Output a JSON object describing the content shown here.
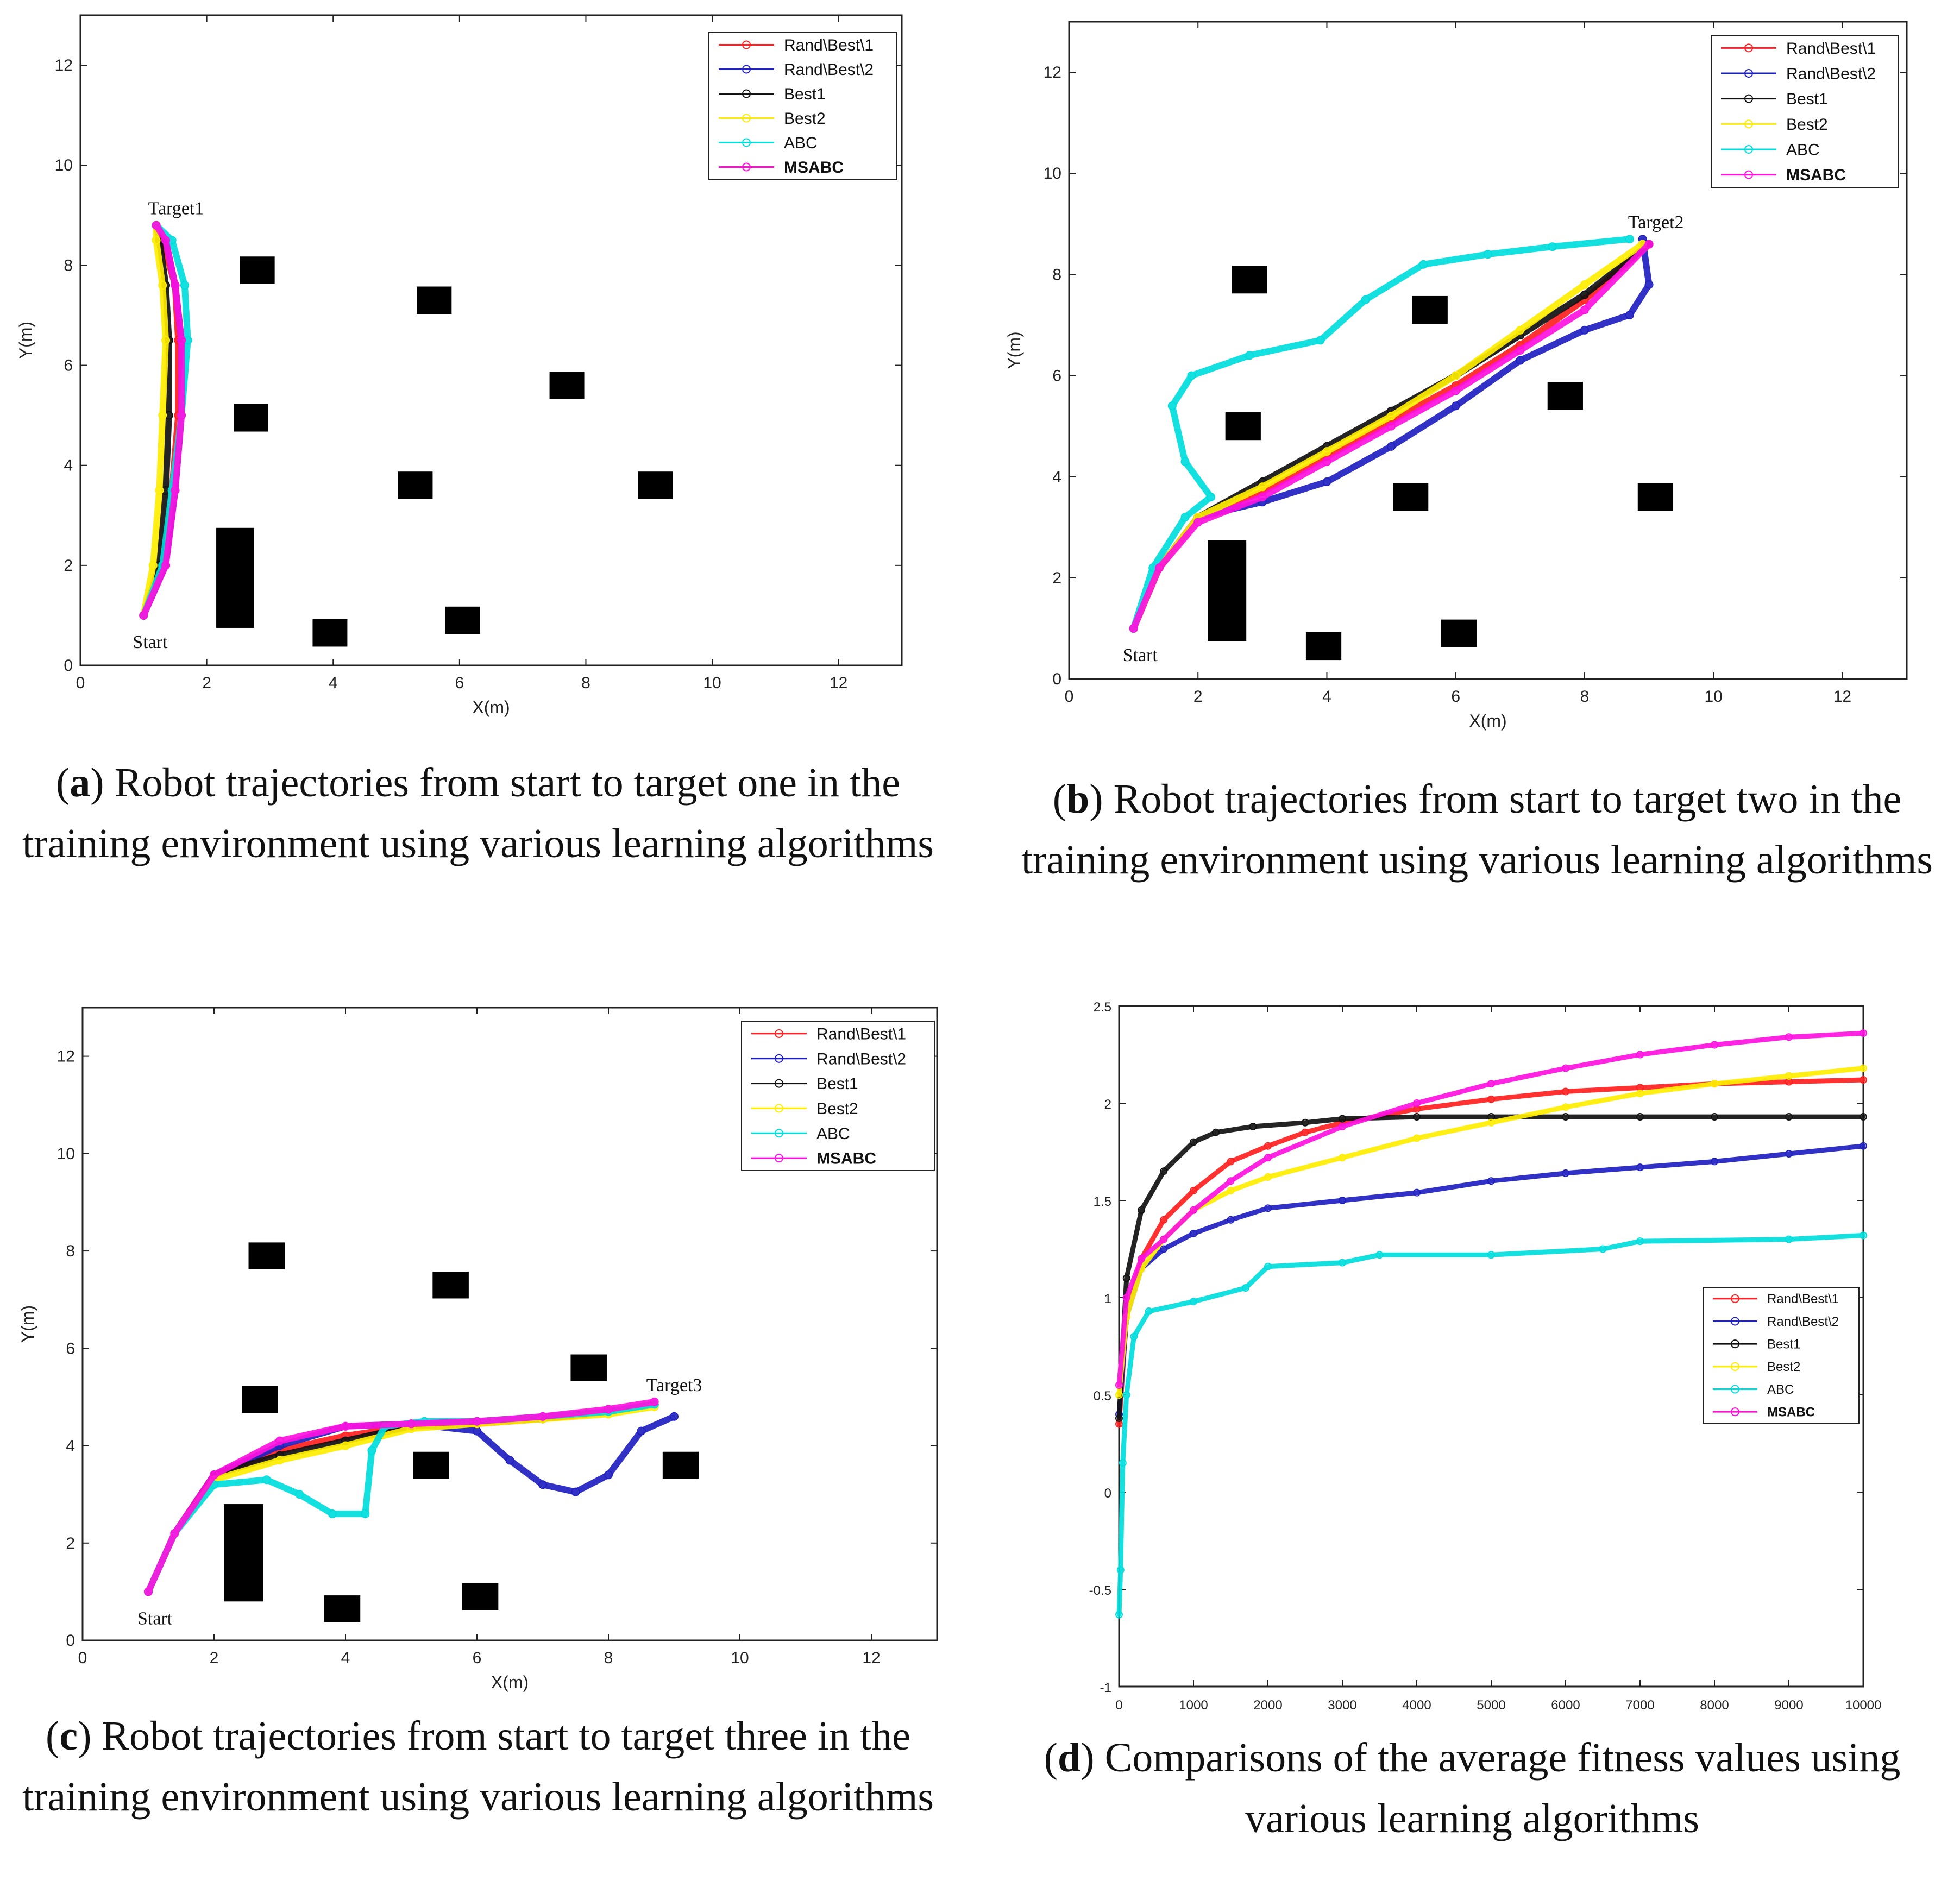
{
  "captions": {
    "a": {
      "letter": "a",
      "text": "Robot trajectories from start to target one in the training environment using various learning algorithms"
    },
    "b": {
      "letter": "b",
      "text": "Robot trajectories from start to target two in the training environment using various learning algorithms"
    },
    "c": {
      "letter": "c",
      "text": "Robot trajectories from start to target three in the training environment using various learning algorithms"
    },
    "d": {
      "letter": "d",
      "text": "Comparisons of the average fitness values using various learning algorithms"
    }
  },
  "colors": {
    "Rand\\Best\\1": "#ff2020",
    "Rand\\Best\\2": "#2020c0",
    "Best1": "#111111",
    "Best2": "#ffee00",
    "ABC": "#00dddd",
    "MSABC": "#ff10e0"
  },
  "chart_data": [
    {
      "panel": "a",
      "type": "line",
      "xlabel": "X(m)",
      "ylabel": "Y(m)",
      "xlim": [
        0,
        13
      ],
      "ylim": [
        0,
        13
      ],
      "xticks": [
        0,
        2,
        4,
        6,
        8,
        10,
        12
      ],
      "yticks": [
        0,
        2,
        4,
        6,
        8,
        10,
        12
      ],
      "legend": [
        "Rand\\Best\\1",
        "Rand\\Best\\2",
        "Best1",
        "Best2",
        "ABC",
        "MSABC"
      ],
      "legend_position": "top-right",
      "annotations": [
        {
          "text": "Start",
          "x": 1.0,
          "y": 1.0
        },
        {
          "text": "Target1",
          "x": 1.2,
          "y": 8.8
        }
      ],
      "obstacles": [
        {
          "x": 2.8,
          "y": 7.9,
          "w": 0.55,
          "h": 0.55
        },
        {
          "x": 5.6,
          "y": 7.3,
          "w": 0.55,
          "h": 0.55
        },
        {
          "x": 7.7,
          "y": 5.6,
          "w": 0.55,
          "h": 0.55
        },
        {
          "x": 2.7,
          "y": 4.95,
          "w": 0.55,
          "h": 0.55
        },
        {
          "x": 5.3,
          "y": 3.6,
          "w": 0.55,
          "h": 0.55
        },
        {
          "x": 9.1,
          "y": 3.6,
          "w": 0.55,
          "h": 0.55
        },
        {
          "x": 2.45,
          "y": 1.75,
          "w": 0.6,
          "h": 2.0
        },
        {
          "x": 3.95,
          "y": 0.65,
          "w": 0.55,
          "h": 0.55
        },
        {
          "x": 6.05,
          "y": 0.9,
          "w": 0.55,
          "h": 0.55
        }
      ],
      "series": [
        {
          "name": "Rand\\Best\\1",
          "x": [
            1.0,
            1.3,
            1.45,
            1.55,
            1.55,
            1.5,
            1.3,
            1.2
          ],
          "y": [
            1.0,
            2.0,
            3.5,
            5.0,
            6.5,
            7.6,
            8.5,
            8.8
          ]
        },
        {
          "name": "Rand\\Best\\2",
          "x": [
            1.0,
            1.35,
            1.5,
            1.6,
            1.6,
            1.5,
            1.35,
            1.2
          ],
          "y": [
            1.0,
            2.0,
            3.5,
            5.0,
            6.5,
            7.6,
            8.5,
            8.8
          ]
        },
        {
          "name": "Best1",
          "x": [
            1.0,
            1.25,
            1.35,
            1.4,
            1.4,
            1.35,
            1.25,
            1.2
          ],
          "y": [
            1.0,
            2.0,
            3.5,
            5.0,
            6.5,
            7.6,
            8.5,
            8.8
          ]
        },
        {
          "name": "Best2",
          "x": [
            1.0,
            1.15,
            1.25,
            1.3,
            1.35,
            1.3,
            1.2,
            1.2
          ],
          "y": [
            1.0,
            2.0,
            3.5,
            5.0,
            6.5,
            7.6,
            8.5,
            8.8
          ]
        },
        {
          "name": "ABC",
          "x": [
            1.0,
            1.3,
            1.45,
            1.6,
            1.7,
            1.65,
            1.45,
            1.2
          ],
          "y": [
            1.0,
            2.0,
            3.5,
            5.0,
            6.5,
            7.6,
            8.5,
            8.8
          ]
        },
        {
          "name": "MSABC",
          "x": [
            1.0,
            1.35,
            1.5,
            1.6,
            1.6,
            1.5,
            1.35,
            1.2
          ],
          "y": [
            1.0,
            2.0,
            3.5,
            5.0,
            6.5,
            7.6,
            8.5,
            8.8
          ]
        }
      ]
    },
    {
      "panel": "b",
      "type": "line",
      "xlabel": "X(m)",
      "ylabel": "Y(m)",
      "xlim": [
        0,
        13
      ],
      "ylim": [
        0,
        13
      ],
      "xticks": [
        0,
        2,
        4,
        6,
        8,
        10,
        12
      ],
      "yticks": [
        0,
        2,
        4,
        6,
        8,
        10,
        12
      ],
      "legend": [
        "Rand\\Best\\1",
        "Rand\\Best\\2",
        "Best1",
        "Best2",
        "ABC",
        "MSABC"
      ],
      "legend_position": "top-right",
      "annotations": [
        {
          "text": "Start",
          "x": 1.0,
          "y": 1.0
        },
        {
          "text": "Target2",
          "x": 8.8,
          "y": 8.7
        }
      ],
      "obstacles": [
        {
          "x": 2.8,
          "y": 7.9,
          "w": 0.55,
          "h": 0.55
        },
        {
          "x": 5.6,
          "y": 7.3,
          "w": 0.55,
          "h": 0.55
        },
        {
          "x": 7.7,
          "y": 5.6,
          "w": 0.55,
          "h": 0.55
        },
        {
          "x": 2.7,
          "y": 5.0,
          "w": 0.55,
          "h": 0.55
        },
        {
          "x": 5.3,
          "y": 3.6,
          "w": 0.55,
          "h": 0.55
        },
        {
          "x": 9.1,
          "y": 3.6,
          "w": 0.55,
          "h": 0.55
        },
        {
          "x": 2.45,
          "y": 1.75,
          "w": 0.6,
          "h": 2.0
        },
        {
          "x": 3.95,
          "y": 0.65,
          "w": 0.55,
          "h": 0.55
        },
        {
          "x": 6.05,
          "y": 0.9,
          "w": 0.55,
          "h": 0.55
        }
      ],
      "series": [
        {
          "name": "Rand\\Best\\1",
          "x": [
            1.0,
            1.4,
            2.0,
            3.0,
            4.0,
            5.0,
            6.0,
            7.0,
            8.0,
            9.0
          ],
          "y": [
            1.0,
            2.2,
            3.2,
            3.7,
            4.4,
            5.1,
            5.8,
            6.6,
            7.5,
            8.6
          ]
        },
        {
          "name": "Rand\\Best\\2",
          "x": [
            1.0,
            1.4,
            2.0,
            3.0,
            4.0,
            5.0,
            6.0,
            7.0,
            8.0,
            8.7,
            9.0,
            8.9
          ],
          "y": [
            1.0,
            2.2,
            3.2,
            3.5,
            3.9,
            4.6,
            5.4,
            6.3,
            6.9,
            7.2,
            7.8,
            8.7
          ]
        },
        {
          "name": "Best1",
          "x": [
            1.0,
            1.4,
            2.0,
            3.0,
            4.0,
            5.0,
            6.0,
            7.0,
            8.0,
            9.0
          ],
          "y": [
            1.0,
            2.2,
            3.2,
            3.9,
            4.6,
            5.3,
            6.0,
            6.8,
            7.6,
            8.6
          ]
        },
        {
          "name": "Best2",
          "x": [
            1.0,
            1.4,
            2.0,
            3.0,
            4.0,
            5.0,
            6.0,
            7.0,
            8.0,
            8.9
          ],
          "y": [
            1.0,
            2.2,
            3.2,
            3.8,
            4.5,
            5.2,
            6.0,
            6.9,
            7.8,
            8.6
          ]
        },
        {
          "name": "ABC",
          "x": [
            1.0,
            1.3,
            1.8,
            2.2,
            1.8,
            1.6,
            1.9,
            2.8,
            3.9,
            4.6,
            5.5,
            6.5,
            7.5,
            8.7
          ],
          "y": [
            1.0,
            2.2,
            3.2,
            3.6,
            4.3,
            5.4,
            6.0,
            6.4,
            6.7,
            7.5,
            8.2,
            8.4,
            8.55,
            8.7
          ]
        },
        {
          "name": "MSABC",
          "x": [
            1.0,
            1.4,
            2.0,
            3.0,
            4.0,
            5.0,
            6.0,
            7.0,
            8.0,
            9.0
          ],
          "y": [
            1.0,
            2.2,
            3.1,
            3.6,
            4.3,
            5.0,
            5.7,
            6.5,
            7.3,
            8.6
          ]
        }
      ]
    },
    {
      "panel": "c",
      "type": "line",
      "xlabel": "X(m)",
      "ylabel": "Y(m)",
      "xlim": [
        0,
        13
      ],
      "ylim": [
        0,
        13
      ],
      "xticks": [
        0,
        2,
        4,
        6,
        8,
        10,
        12
      ],
      "yticks": [
        0,
        2,
        4,
        6,
        8,
        10,
        12
      ],
      "legend": [
        "Rand\\Best\\1",
        "Rand\\Best\\2",
        "Best1",
        "Best2",
        "ABC",
        "MSABC"
      ],
      "legend_position": "top-right",
      "annotations": [
        {
          "text": "Start",
          "x": 1.0,
          "y": 1.0
        },
        {
          "text": "Target3",
          "x": 8.7,
          "y": 4.9
        }
      ],
      "obstacles": [
        {
          "x": 2.8,
          "y": 7.9,
          "w": 0.55,
          "h": 0.55
        },
        {
          "x": 5.6,
          "y": 7.3,
          "w": 0.55,
          "h": 0.55
        },
        {
          "x": 7.7,
          "y": 5.6,
          "w": 0.55,
          "h": 0.55
        },
        {
          "x": 2.7,
          "y": 4.95,
          "w": 0.55,
          "h": 0.55
        },
        {
          "x": 5.3,
          "y": 3.6,
          "w": 0.55,
          "h": 0.55
        },
        {
          "x": 9.1,
          "y": 3.6,
          "w": 0.55,
          "h": 0.55
        },
        {
          "x": 2.45,
          "y": 1.8,
          "w": 0.6,
          "h": 2.0
        },
        {
          "x": 3.95,
          "y": 0.65,
          "w": 0.55,
          "h": 0.55
        },
        {
          "x": 6.05,
          "y": 0.9,
          "w": 0.55,
          "h": 0.55
        }
      ],
      "series": [
        {
          "name": "Rand\\Best\\1",
          "x": [
            1.0,
            1.4,
            2.0,
            3.0,
            4.0,
            5.0,
            6.0,
            7.0,
            8.0,
            8.7
          ],
          "y": [
            1.0,
            2.2,
            3.4,
            3.9,
            4.2,
            4.4,
            4.45,
            4.55,
            4.7,
            4.85
          ]
        },
        {
          "name": "Rand\\Best\\2",
          "x": [
            1.0,
            1.4,
            2.0,
            3.0,
            4.0,
            5.0,
            6.0,
            6.5,
            7.0,
            7.5,
            8.0,
            8.5,
            9.0
          ],
          "y": [
            1.0,
            2.2,
            3.4,
            4.0,
            4.4,
            4.45,
            4.3,
            3.7,
            3.2,
            3.05,
            3.4,
            4.3,
            4.6
          ]
        },
        {
          "name": "Best1",
          "x": [
            1.0,
            1.4,
            2.0,
            3.0,
            4.0,
            5.0,
            6.0,
            7.0,
            8.0,
            8.7
          ],
          "y": [
            1.0,
            2.2,
            3.4,
            3.8,
            4.1,
            4.4,
            4.5,
            4.55,
            4.7,
            4.85
          ]
        },
        {
          "name": "Best2",
          "x": [
            1.0,
            1.4,
            2.0,
            3.0,
            4.0,
            5.0,
            6.0,
            7.0,
            8.0,
            8.7
          ],
          "y": [
            1.0,
            2.2,
            3.3,
            3.7,
            4.0,
            4.35,
            4.45,
            4.55,
            4.65,
            4.8
          ]
        },
        {
          "name": "ABC",
          "x": [
            1.0,
            1.4,
            2.0,
            2.8,
            3.3,
            3.8,
            4.3,
            4.4,
            4.6,
            5.2,
            6.0,
            7.0,
            8.0,
            8.7
          ],
          "y": [
            1.0,
            2.2,
            3.2,
            3.3,
            3.0,
            2.6,
            2.6,
            3.9,
            4.4,
            4.5,
            4.5,
            4.6,
            4.7,
            4.85
          ]
        },
        {
          "name": "MSABC",
          "x": [
            1.0,
            1.4,
            2.0,
            3.0,
            4.0,
            5.0,
            6.0,
            7.0,
            8.0,
            8.7
          ],
          "y": [
            1.0,
            2.2,
            3.4,
            4.1,
            4.4,
            4.45,
            4.5,
            4.6,
            4.75,
            4.9
          ]
        }
      ]
    },
    {
      "panel": "d",
      "type": "line",
      "xlabel": "",
      "ylabel": "",
      "xlim": [
        0,
        10000
      ],
      "ylim": [
        -1,
        2.5
      ],
      "xticks": [
        0,
        1000,
        2000,
        3000,
        4000,
        5000,
        6000,
        7000,
        8000,
        9000,
        10000
      ],
      "yticks": [
        -1,
        -0.5,
        0,
        0.5,
        1,
        1.5,
        2,
        2.5
      ],
      "legend": [
        "Rand\\Best\\1",
        "Rand\\Best\\2",
        "Best1",
        "Best2",
        "ABC",
        "MSABC"
      ],
      "legend_position": "center-right",
      "series": [
        {
          "name": "Rand\\Best\\1",
          "marker": "triangle-up",
          "x": [
            0,
            100,
            300,
            600,
            1000,
            1500,
            2000,
            2500,
            3000,
            4000,
            5000,
            6000,
            7000,
            8000,
            9000,
            10000
          ],
          "y": [
            0.35,
            0.9,
            1.2,
            1.4,
            1.55,
            1.7,
            1.78,
            1.85,
            1.9,
            1.97,
            2.02,
            2.06,
            2.08,
            2.1,
            2.11,
            2.12
          ]
        },
        {
          "name": "Rand\\Best\\2",
          "marker": "triangle-down",
          "x": [
            0,
            100,
            300,
            600,
            1000,
            1500,
            2000,
            3000,
            4000,
            5000,
            6000,
            7000,
            8000,
            9000,
            10000
          ],
          "y": [
            0.4,
            0.9,
            1.15,
            1.25,
            1.33,
            1.4,
            1.46,
            1.5,
            1.54,
            1.6,
            1.64,
            1.67,
            1.7,
            1.74,
            1.78
          ]
        },
        {
          "name": "Best1",
          "marker": "triangle-right",
          "x": [
            0,
            100,
            300,
            600,
            1000,
            1300,
            1800,
            2500,
            3000,
            4000,
            5000,
            6000,
            7000,
            8000,
            9000,
            10000
          ],
          "y": [
            0.38,
            1.1,
            1.45,
            1.65,
            1.8,
            1.85,
            1.88,
            1.9,
            1.92,
            1.93,
            1.93,
            1.93,
            1.93,
            1.93,
            1.93,
            1.93
          ]
        },
        {
          "name": "Best2",
          "marker": "circle",
          "x": [
            0,
            100,
            300,
            600,
            1000,
            1500,
            2000,
            3000,
            4000,
            5000,
            6000,
            7000,
            8000,
            9000,
            10000
          ],
          "y": [
            0.5,
            0.9,
            1.15,
            1.3,
            1.45,
            1.55,
            1.62,
            1.72,
            1.82,
            1.9,
            1.98,
            2.05,
            2.1,
            2.14,
            2.18
          ]
        },
        {
          "name": "ABC",
          "marker": "circle",
          "x": [
            0,
            20,
            50,
            100,
            200,
            400,
            1000,
            1700,
            2000,
            3000,
            3500,
            5000,
            6500,
            7000,
            9000,
            10000
          ],
          "y": [
            -0.63,
            -0.4,
            0.15,
            0.5,
            0.8,
            0.93,
            0.98,
            1.05,
            1.16,
            1.18,
            1.22,
            1.22,
            1.25,
            1.29,
            1.3,
            1.32
          ]
        },
        {
          "name": "MSABC",
          "marker": "star",
          "x": [
            0,
            100,
            300,
            600,
            1000,
            1500,
            2000,
            3000,
            4000,
            5000,
            6000,
            7000,
            8000,
            9000,
            10000
          ],
          "y": [
            0.55,
            1.0,
            1.2,
            1.3,
            1.45,
            1.6,
            1.72,
            1.88,
            2.0,
            2.1,
            2.18,
            2.25,
            2.3,
            2.34,
            2.36
          ]
        }
      ]
    }
  ]
}
